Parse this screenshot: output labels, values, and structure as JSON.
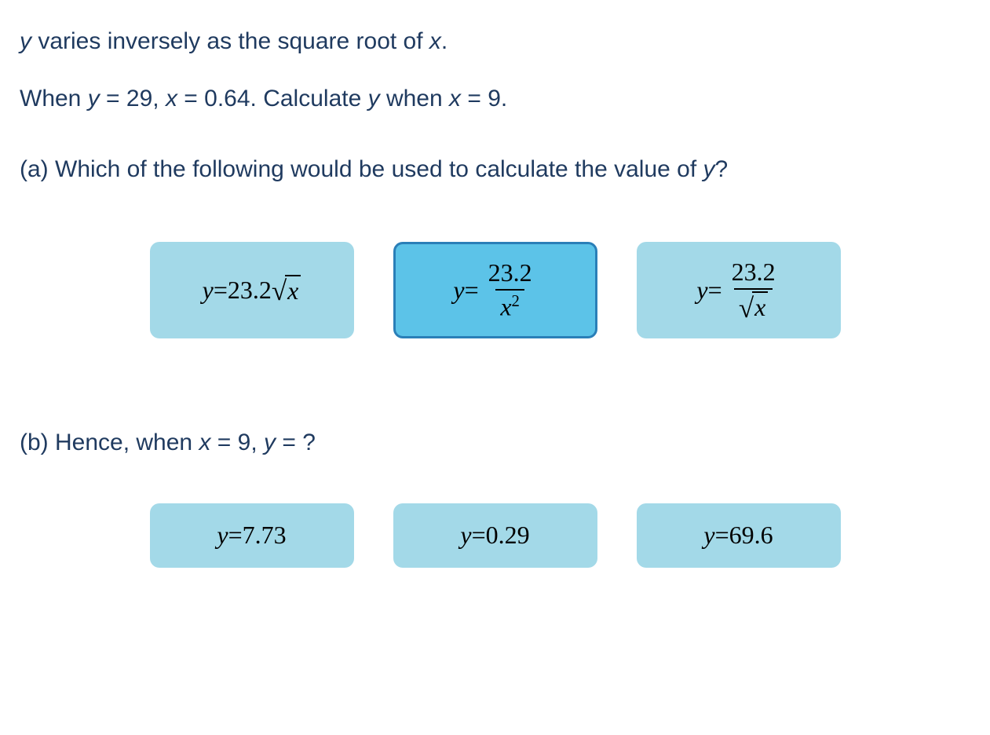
{
  "colors": {
    "text": "#1f3a5f",
    "option_bg": "#a3d9e8",
    "option_selected_bg": "#5cc3e8",
    "option_selected_border": "#2a7fb8",
    "option_text": "#000000"
  },
  "problem": {
    "line1_pre": " varies inversely as the square root of ",
    "var_y": "y",
    "var_x": "x",
    "line2_pre": "When ",
    "line2_eq1": " = 29, ",
    "line2_eq2": " = 0.64. Calculate ",
    "line2_mid": " when ",
    "line2_end": " = 9."
  },
  "part_a": {
    "label": "(a) Which of the following would be used to calculate the value of ",
    "var_y": "y",
    "qmark": "?",
    "options": [
      {
        "id": "opt-a1",
        "selected": false,
        "lhs": "y",
        "eq": " = ",
        "coef": "23.2",
        "has_sqrt_inline": true,
        "sqrt_arg": "x"
      },
      {
        "id": "opt-a2",
        "selected": true,
        "lhs": "y",
        "eq": " = ",
        "frac_num": "23.2",
        "frac_den_base": "x",
        "frac_den_exp": "2"
      },
      {
        "id": "opt-a3",
        "selected": false,
        "lhs": "y",
        "eq": " = ",
        "frac_num": "23.2",
        "frac_den_sqrt_arg": "x"
      }
    ]
  },
  "part_b": {
    "label_pre": "(b) Hence, when ",
    "var_x": "x",
    "label_mid": " = 9, ",
    "var_y": "y",
    "label_end": " = ?",
    "options": [
      {
        "id": "opt-b1",
        "lhs": "y",
        "eq": " = ",
        "val": "7.73"
      },
      {
        "id": "opt-b2",
        "lhs": "y",
        "eq": " = ",
        "val": "0.29"
      },
      {
        "id": "opt-b3",
        "lhs": "y",
        "eq": " = ",
        "val": "69.6"
      }
    ]
  },
  "style": {
    "option_border_radius": 12,
    "option_font_size": 32,
    "body_font_size": 30
  }
}
